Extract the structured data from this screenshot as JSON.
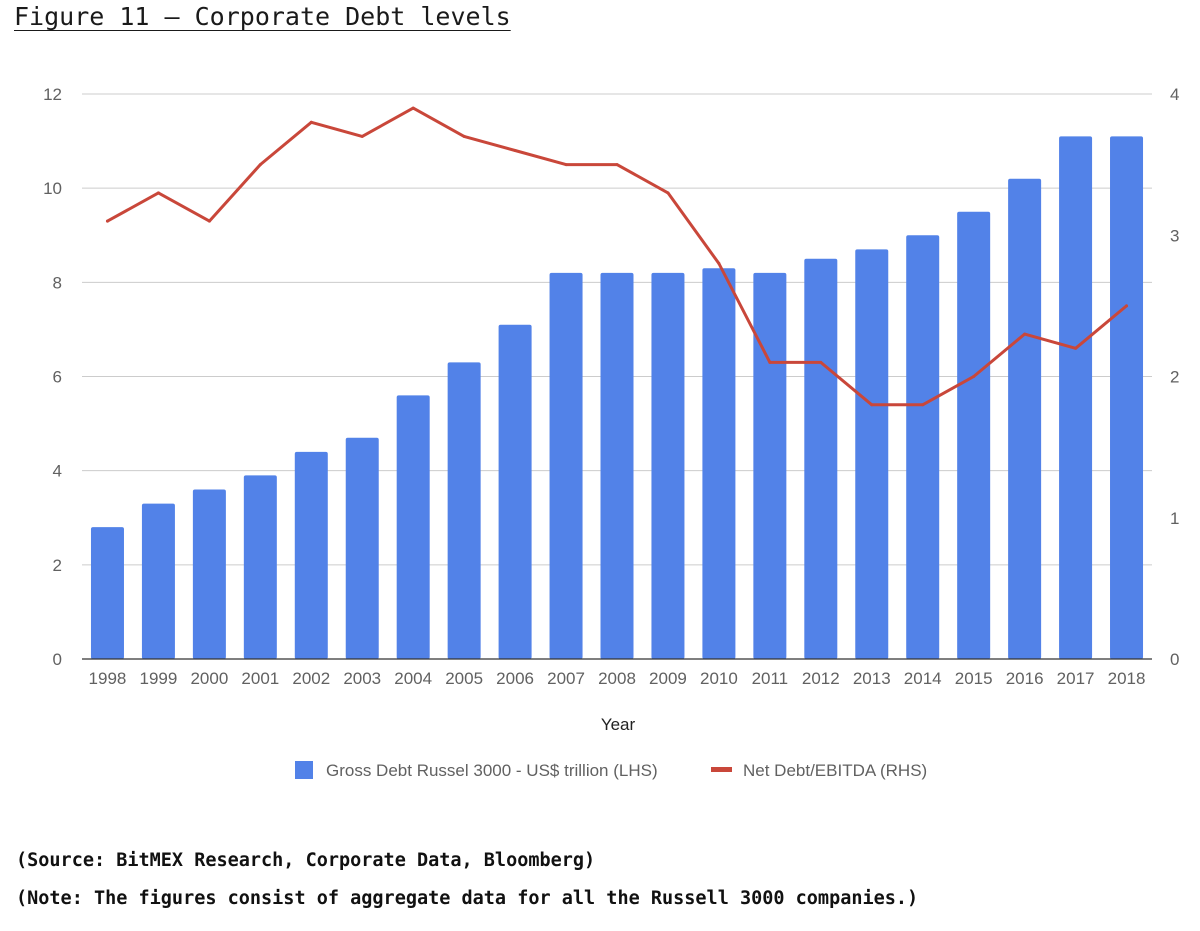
{
  "figure_title": "Figure 11 – Corporate Debt levels",
  "source_note": "(Source: BitMEX Research, Corporate Data, Bloomberg)",
  "figures_note": "(Note: The figures consist of aggregate data for all the Russell 3000 companies.)",
  "colors": {
    "bars": "#5282e8",
    "line": "#c9473a",
    "grid": "#cccccc",
    "axis": "#333333"
  },
  "chart_data": {
    "type": "bar",
    "title": "",
    "xlabel": "Year",
    "ylabel": "",
    "y2label": "",
    "categories": [
      "1998",
      "1999",
      "2000",
      "2001",
      "2002",
      "2003",
      "2004",
      "2005",
      "2006",
      "2007",
      "2008",
      "2009",
      "2010",
      "2011",
      "2012",
      "2013",
      "2014",
      "2015",
      "2016",
      "2017",
      "2018"
    ],
    "ylim": [
      0,
      12
    ],
    "y_ticks": [
      "0",
      "2",
      "4",
      "6",
      "8",
      "10",
      "12"
    ],
    "y2lim": [
      0,
      4
    ],
    "y2_ticks": [
      "0",
      "1",
      "2",
      "3",
      "4"
    ],
    "grid": true,
    "legend_position": "bottom",
    "series": [
      {
        "name": "Gross Debt Russel 3000 - US$ trillion (LHS)",
        "type": "bar",
        "axis": "left",
        "values": [
          2.8,
          3.3,
          3.6,
          3.9,
          4.4,
          4.7,
          5.6,
          6.3,
          7.1,
          8.2,
          8.2,
          8.2,
          8.3,
          8.2,
          8.5,
          8.7,
          9.0,
          9.5,
          10.2,
          11.1,
          11.1
        ]
      },
      {
        "name": "Net Debt/EBITDA (RHS)",
        "type": "line",
        "axis": "right",
        "values": [
          3.1,
          3.3,
          3.1,
          3.5,
          3.8,
          3.7,
          3.9,
          3.7,
          3.6,
          3.5,
          3.5,
          3.3,
          2.8,
          2.1,
          2.1,
          1.8,
          1.8,
          2.0,
          2.3,
          2.2,
          2.5
        ]
      }
    ]
  }
}
